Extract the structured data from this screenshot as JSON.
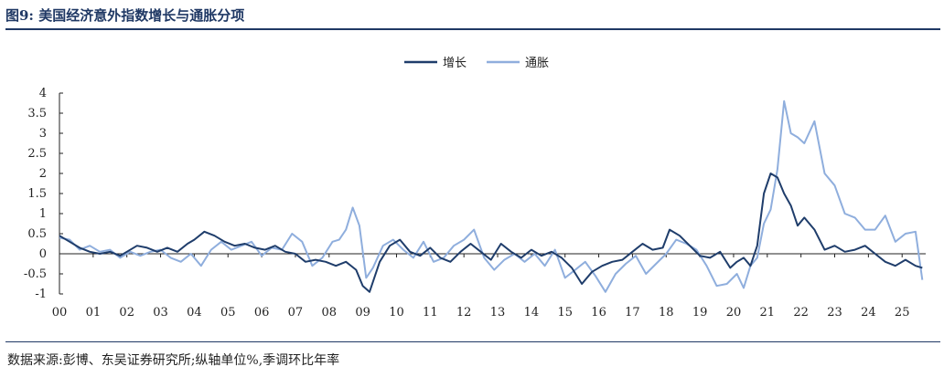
{
  "page": {
    "title": "图9:  美国经济意外指数增长与通胀分项",
    "source": "数据来源:彭博、东吴证券研究所;纵轴单位%,季调环比年率"
  },
  "colors": {
    "growth": "#1f3d6b",
    "inflation": "#8faedd",
    "axis": "#222222"
  },
  "chart_data": {
    "type": "line",
    "title": "",
    "xlabel": "",
    "ylabel": "",
    "ylim": [
      -1,
      4
    ],
    "yticks": [
      -1,
      -0.5,
      0,
      0.5,
      1,
      1.5,
      2,
      2.5,
      3,
      3.5,
      4
    ],
    "ytick_labels": [
      "-1",
      "-0.5",
      "0",
      "0.5",
      "1",
      "1.5",
      "2",
      "2.5",
      "3",
      "3.5",
      "4"
    ],
    "xlim": [
      2000,
      2025.7
    ],
    "xticks": [
      2000,
      2001,
      2002,
      2003,
      2004,
      2005,
      2006,
      2007,
      2008,
      2009,
      2010,
      2011,
      2012,
      2013,
      2014,
      2015,
      2016,
      2017,
      2018,
      2019,
      2020,
      2021,
      2022,
      2023,
      2024,
      2025
    ],
    "xtick_labels": [
      "00",
      "01",
      "02",
      "03",
      "04",
      "05",
      "06",
      "07",
      "08",
      "09",
      "10",
      "11",
      "12",
      "13",
      "14",
      "15",
      "16",
      "17",
      "18",
      "19",
      "20",
      "21",
      "22",
      "23",
      "24",
      "25"
    ],
    "grid": false,
    "legend": "top-center",
    "series": [
      {
        "name": "增长",
        "color": "#1f3d6b",
        "x": [
          2000.0,
          2000.3,
          2000.6,
          2000.9,
          2001.2,
          2001.5,
          2001.8,
          2002.0,
          2002.3,
          2002.6,
          2002.9,
          2003.2,
          2003.5,
          2003.8,
          2004.0,
          2004.3,
          2004.6,
          2004.9,
          2005.2,
          2005.5,
          2005.8,
          2006.1,
          2006.4,
          2006.7,
          2007.0,
          2007.3,
          2007.6,
          2007.9,
          2008.2,
          2008.5,
          2008.8,
          2009.0,
          2009.2,
          2009.5,
          2009.8,
          2010.1,
          2010.4,
          2010.7,
          2011.0,
          2011.3,
          2011.6,
          2011.9,
          2012.2,
          2012.5,
          2012.8,
          2013.1,
          2013.4,
          2013.7,
          2014.0,
          2014.3,
          2014.6,
          2014.9,
          2015.2,
          2015.5,
          2015.8,
          2016.1,
          2016.4,
          2016.7,
          2017.0,
          2017.3,
          2017.6,
          2017.9,
          2018.1,
          2018.4,
          2018.7,
          2019.0,
          2019.3,
          2019.6,
          2019.9,
          2020.1,
          2020.3,
          2020.5,
          2020.7,
          2020.9,
          2021.1,
          2021.3,
          2021.5,
          2021.7,
          2021.9,
          2022.1,
          2022.4,
          2022.7,
          2023.0,
          2023.3,
          2023.6,
          2023.9,
          2024.2,
          2024.5,
          2024.8,
          2025.1,
          2025.4,
          2025.6
        ],
        "values": [
          0.45,
          0.3,
          0.15,
          0.05,
          0.0,
          0.05,
          -0.05,
          0.05,
          0.2,
          0.15,
          0.05,
          0.15,
          0.05,
          0.25,
          0.35,
          0.55,
          0.45,
          0.3,
          0.2,
          0.25,
          0.15,
          0.1,
          0.2,
          0.05,
          0.0,
          -0.2,
          -0.15,
          -0.2,
          -0.3,
          -0.2,
          -0.4,
          -0.8,
          -0.95,
          -0.2,
          0.2,
          0.35,
          0.05,
          -0.05,
          0.15,
          -0.1,
          -0.2,
          0.05,
          0.25,
          0.05,
          -0.15,
          0.25,
          0.05,
          -0.1,
          0.1,
          -0.05,
          0.05,
          -0.1,
          -0.35,
          -0.75,
          -0.45,
          -0.3,
          -0.2,
          -0.15,
          0.05,
          0.25,
          0.1,
          0.15,
          0.6,
          0.45,
          0.2,
          -0.05,
          -0.1,
          0.05,
          -0.35,
          -0.2,
          -0.1,
          -0.3,
          0.2,
          1.5,
          2.0,
          1.9,
          1.5,
          1.2,
          0.7,
          0.9,
          0.6,
          0.1,
          0.2,
          0.05,
          0.1,
          0.2,
          0.0,
          -0.2,
          -0.3,
          -0.15,
          -0.3,
          -0.35
        ]
      },
      {
        "name": "通胀",
        "color": "#8faedd",
        "x": [
          2000.0,
          2000.3,
          2000.6,
          2000.9,
          2001.2,
          2001.5,
          2001.8,
          2002.1,
          2002.4,
          2002.7,
          2003.0,
          2003.3,
          2003.6,
          2003.9,
          2004.2,
          2004.5,
          2004.8,
          2005.1,
          2005.4,
          2005.7,
          2006.0,
          2006.3,
          2006.6,
          2006.9,
          2007.2,
          2007.5,
          2007.8,
          2008.1,
          2008.3,
          2008.5,
          2008.7,
          2008.9,
          2009.1,
          2009.3,
          2009.6,
          2009.9,
          2010.2,
          2010.5,
          2010.8,
          2011.1,
          2011.4,
          2011.7,
          2012.0,
          2012.3,
          2012.6,
          2012.9,
          2013.2,
          2013.5,
          2013.8,
          2014.1,
          2014.4,
          2014.7,
          2015.0,
          2015.3,
          2015.6,
          2015.9,
          2016.2,
          2016.5,
          2016.8,
          2017.1,
          2017.4,
          2017.7,
          2018.0,
          2018.3,
          2018.6,
          2018.9,
          2019.2,
          2019.5,
          2019.8,
          2020.1,
          2020.3,
          2020.5,
          2020.7,
          2020.9,
          2021.1,
          2021.3,
          2021.5,
          2021.7,
          2021.9,
          2022.1,
          2022.4,
          2022.7,
          2023.0,
          2023.3,
          2023.6,
          2023.9,
          2024.2,
          2024.5,
          2024.8,
          2025.1,
          2025.4,
          2025.6
        ],
        "values": [
          0.4,
          0.35,
          0.1,
          0.2,
          0.05,
          0.1,
          -0.1,
          0.05,
          -0.05,
          0.05,
          0.1,
          -0.1,
          -0.2,
          0.0,
          -0.3,
          0.1,
          0.3,
          0.1,
          0.2,
          0.3,
          -0.05,
          0.15,
          0.1,
          0.5,
          0.3,
          -0.3,
          -0.1,
          0.3,
          0.35,
          0.6,
          1.15,
          0.7,
          -0.6,
          -0.35,
          0.2,
          0.35,
          0.1,
          -0.1,
          0.3,
          -0.2,
          -0.1,
          0.2,
          0.35,
          0.6,
          -0.1,
          -0.4,
          -0.15,
          0.0,
          -0.2,
          0.0,
          -0.3,
          0.1,
          -0.6,
          -0.4,
          -0.2,
          -0.55,
          -0.95,
          -0.5,
          -0.25,
          -0.05,
          -0.5,
          -0.25,
          0.0,
          0.35,
          0.25,
          0.1,
          -0.3,
          -0.8,
          -0.75,
          -0.5,
          -0.85,
          -0.3,
          -0.1,
          0.75,
          1.1,
          2.1,
          3.8,
          3.0,
          2.9,
          2.75,
          3.3,
          2.0,
          1.7,
          1.0,
          0.9,
          0.6,
          0.6,
          0.95,
          0.3,
          0.5,
          0.55,
          -0.65
        ]
      }
    ]
  }
}
